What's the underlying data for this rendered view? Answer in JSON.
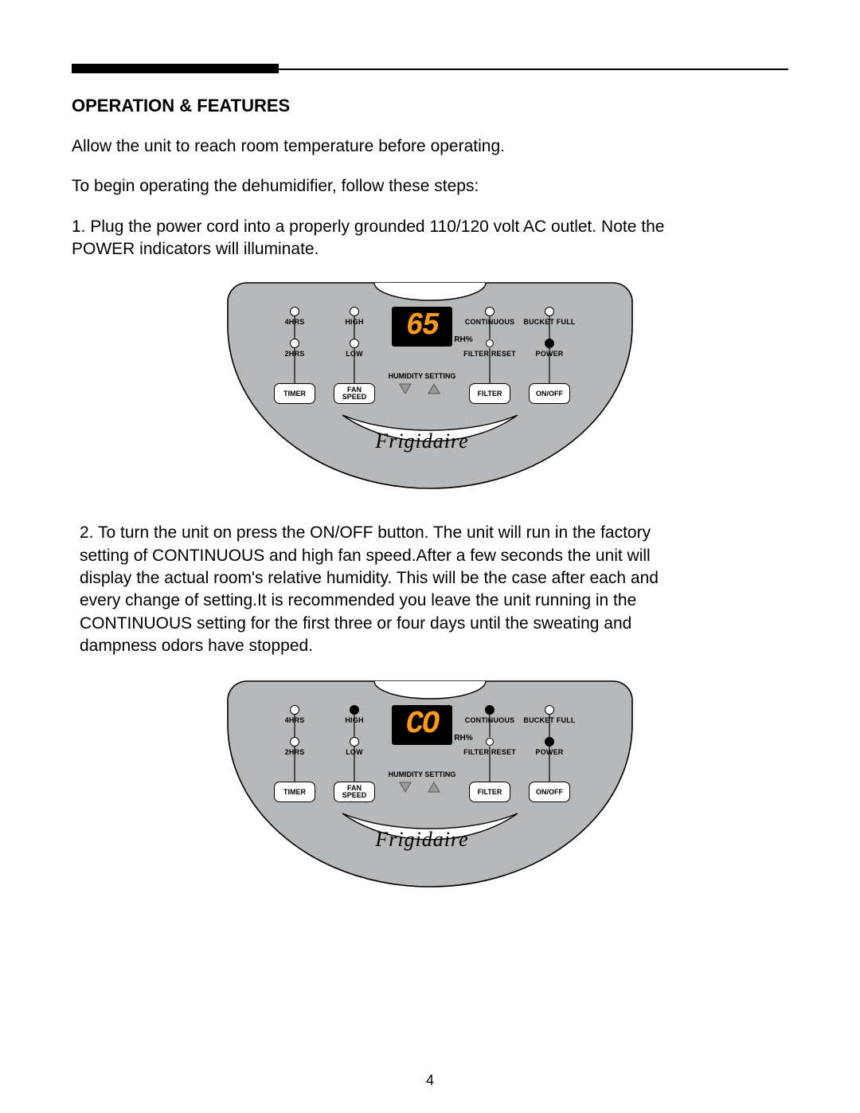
{
  "heading": "OPERATION & FEATURES",
  "intro1": "Allow the unit to reach room temperature before operating.",
  "intro2": "To begin operating the dehumidifier, follow these steps:",
  "step1": "1. Plug the power cord into a properly grounded 110/120 volt AC outlet. Note the POWER indicators will illuminate.",
  "step2": "2. To turn the unit on press the ON/OFF button. The unit will run in the factory setting of CONTINUOUS and high fan speed.After a few seconds the unit will display the actual room's relative humidity. This will be the case after each and every change of setting.It is recommended you leave the unit running in the  CONTINUOUS setting for the first three or four days until the sweating and dampness odors have stopped.",
  "page_number": "4",
  "panel_common": {
    "bg_color": "#b7b8b9",
    "brand": "Frigidaire",
    "rh_label": "RH%",
    "humidity_setting_label": "HUMIDITY SETTING",
    "labels": {
      "four_hrs": "4HRS",
      "two_hrs": "2HRS",
      "high": "HIGH",
      "low": "LOW",
      "continuous": "CONTINUOUS",
      "filter_reset": "FILTER RESET",
      "bucket_full": "BUCKET FULL",
      "power": "POWER"
    },
    "buttons": {
      "timer": "TIMER",
      "fan_speed": "FAN\nSPEED",
      "filter": "FILTER",
      "on_off": "ON/OFF"
    },
    "display_color": "#ff9a1a"
  },
  "panel1": {
    "display_value": "65",
    "leds": {
      "four_hrs": false,
      "two_hrs": false,
      "high": false,
      "low": false,
      "continuous": false,
      "filter_reset": false,
      "bucket_full": false,
      "power": true
    }
  },
  "panel2": {
    "display_value": "CO",
    "leds": {
      "four_hrs": false,
      "two_hrs": false,
      "high": true,
      "low": false,
      "continuous": true,
      "filter_reset": false,
      "bucket_full": false,
      "power": true
    }
  }
}
